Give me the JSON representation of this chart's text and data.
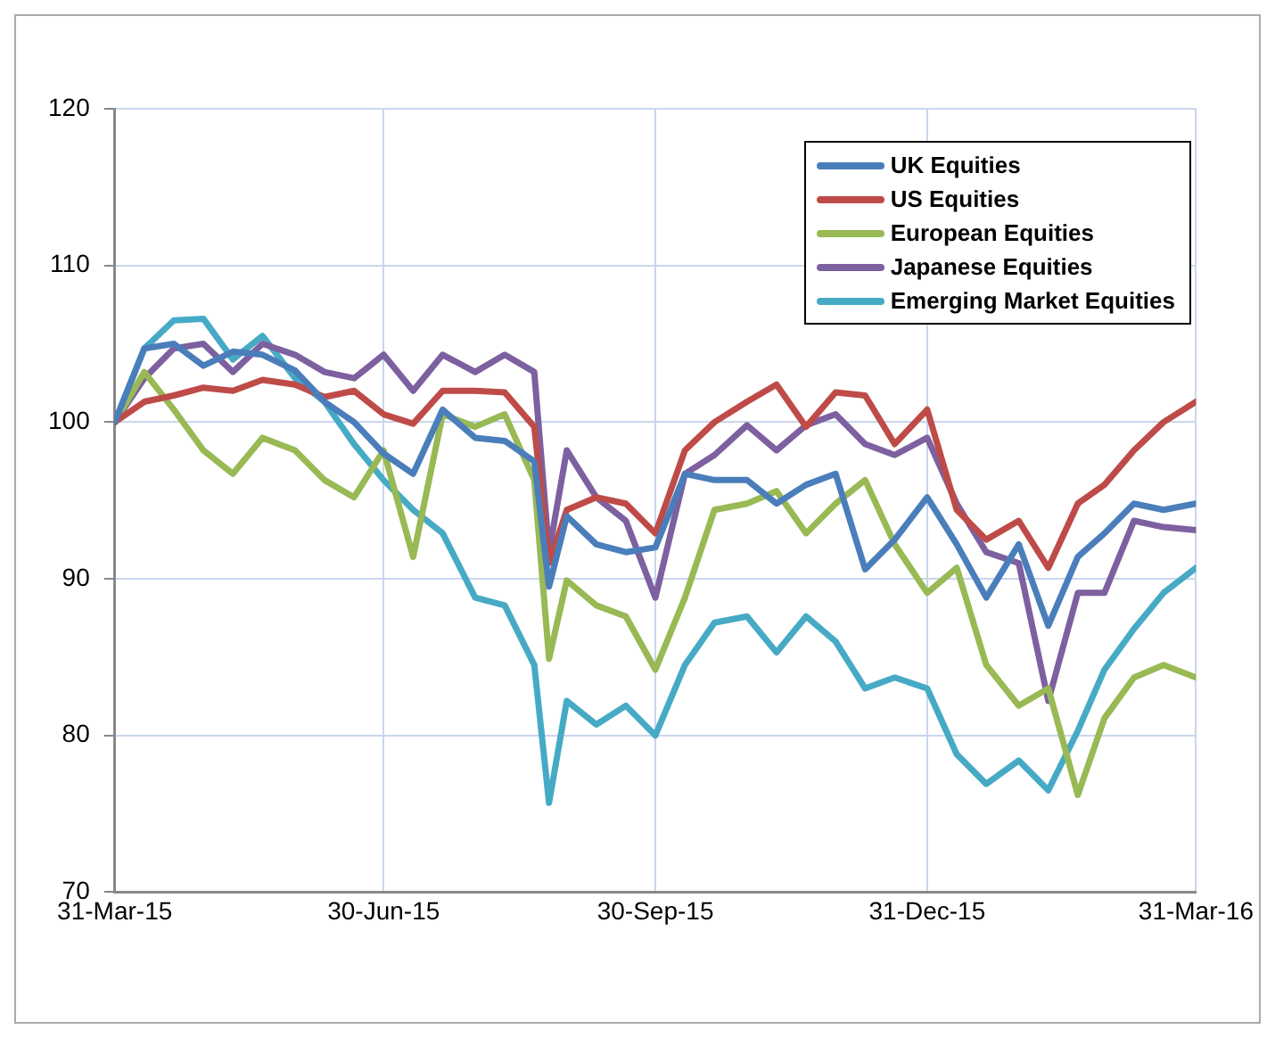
{
  "chart_data": {
    "type": "line",
    "x": [
      "2015-03-31",
      "2015-04-10",
      "2015-04-20",
      "2015-04-30",
      "2015-05-10",
      "2015-05-20",
      "2015-05-31",
      "2015-06-10",
      "2015-06-20",
      "2015-06-30",
      "2015-07-10",
      "2015-07-20",
      "2015-07-31",
      "2015-08-10",
      "2015-08-20",
      "2015-08-25",
      "2015-08-31",
      "2015-09-10",
      "2015-09-20",
      "2015-09-30",
      "2015-10-10",
      "2015-10-20",
      "2015-10-31",
      "2015-11-10",
      "2015-11-20",
      "2015-11-30",
      "2015-12-10",
      "2015-12-20",
      "2015-12-31",
      "2016-01-10",
      "2016-01-20",
      "2016-01-31",
      "2016-02-10",
      "2016-02-20",
      "2016-02-29",
      "2016-03-10",
      "2016-03-20",
      "2016-03-31"
    ],
    "series": [
      {
        "name": "UK Equities",
        "color": "#4a7ebb",
        "values": [
          100,
          104.7,
          105,
          103.6,
          104.5,
          104.3,
          103.3,
          101.3,
          100,
          98,
          96.7,
          100.8,
          99,
          98.8,
          97.5,
          89.5,
          94,
          92.2,
          91.7,
          92,
          96.7,
          96.3,
          96.3,
          94.8,
          96,
          96.7,
          90.6,
          92.5,
          95.2,
          92.2,
          88.8,
          92.2,
          87,
          91.4,
          92.9,
          94.8,
          94.4,
          94.8
        ]
      },
      {
        "name": "US Equities",
        "color": "#be4b48",
        "values": [
          100,
          101.3,
          101.7,
          102.2,
          102,
          102.7,
          102.4,
          101.6,
          102,
          100.5,
          99.9,
          102,
          102,
          101.9,
          99.7,
          91,
          94.4,
          95.2,
          94.8,
          92.9,
          98.2,
          100,
          101.3,
          102.4,
          99.7,
          101.9,
          101.7,
          98.6,
          100.8,
          94.4,
          92.5,
          93.7,
          90.7,
          94.8,
          96,
          98.2,
          100,
          101.3
        ]
      },
      {
        "name": "European Equities",
        "color": "#98b954",
        "values": [
          100,
          103.2,
          100.8,
          98.2,
          96.7,
          99,
          98.2,
          96.3,
          95.2,
          98.2,
          91.4,
          100.5,
          99.7,
          100.5,
          96.3,
          84.9,
          89.9,
          88.3,
          87.6,
          84.2,
          88.8,
          94.4,
          94.8,
          95.6,
          92.9,
          94.8,
          96.3,
          92.2,
          89.1,
          90.7,
          84.5,
          81.9,
          83,
          76.2,
          81.1,
          83.7,
          84.5,
          83.7
        ]
      },
      {
        "name": "Japanese Equities",
        "color": "#7d60a0",
        "values": [
          100,
          102.8,
          104.7,
          105,
          103.2,
          105,
          104.3,
          103.2,
          102.8,
          104.3,
          102,
          104.3,
          103.2,
          104.3,
          103.2,
          91.7,
          98.2,
          95.2,
          93.7,
          88.8,
          96.7,
          97.9,
          99.8,
          98.2,
          99.8,
          100.5,
          98.6,
          97.9,
          99,
          94.8,
          91.7,
          91,
          82.2,
          89.1,
          89.1,
          93.7,
          93.3,
          93.1
        ]
      },
      {
        "name": "Emerging Market Equities",
        "color": "#46aac5",
        "values": [
          100,
          104.7,
          106.5,
          106.6,
          104,
          105.5,
          102.8,
          101.3,
          98.6,
          96.3,
          94.4,
          92.9,
          88.8,
          88.3,
          84.5,
          75.7,
          82.2,
          80.7,
          81.9,
          80,
          84.5,
          87.2,
          87.6,
          85.3,
          87.6,
          86,
          83,
          83.7,
          83,
          78.8,
          76.9,
          78.4,
          76.5,
          80.3,
          84.2,
          86.8,
          89.1,
          90.7
        ]
      }
    ],
    "xlim": [
      "2015-03-31",
      "2016-03-31"
    ],
    "xticks": [
      {
        "value": "2015-03-31",
        "label": "31-Mar-15"
      },
      {
        "value": "2015-06-30",
        "label": "30-Jun-15"
      },
      {
        "value": "2015-09-30",
        "label": "30-Sep-15"
      },
      {
        "value": "2015-12-31",
        "label": "31-Dec-15"
      },
      {
        "value": "2016-03-31",
        "label": "31-Mar-16"
      }
    ],
    "ylim": [
      70,
      120
    ],
    "yticks": [
      70,
      80,
      90,
      100,
      110,
      120
    ],
    "grid": true,
    "legend": "top right",
    "marker": "none",
    "line_style": "solid"
  }
}
